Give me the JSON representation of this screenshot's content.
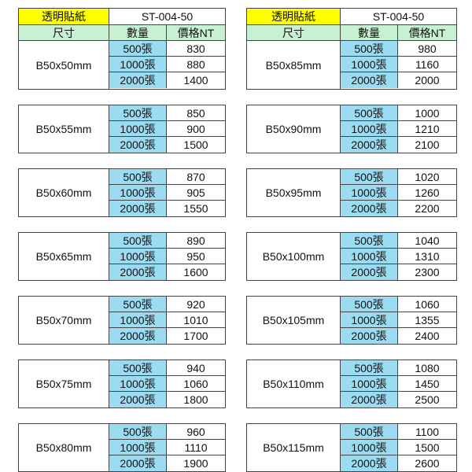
{
  "colors": {
    "title_bg": "#ffff00",
    "header_bg": "#c8f0d2",
    "qty_bg": "#9cdcf2"
  },
  "tables": [
    {
      "title": "透明貼紙",
      "code": "ST-004-50",
      "headers": [
        "尺寸",
        "數量",
        "價格NT"
      ],
      "blocks": [
        {
          "size": "B50x50mm",
          "rows": [
            [
              "500張",
              "830"
            ],
            [
              "1000張",
              "880"
            ],
            [
              "2000張",
              "1400"
            ]
          ]
        },
        {
          "size": "B50x55mm",
          "rows": [
            [
              "500張",
              "850"
            ],
            [
              "1000張",
              "900"
            ],
            [
              "2000張",
              "1500"
            ]
          ]
        },
        {
          "size": "B50x60mm",
          "rows": [
            [
              "500張",
              "870"
            ],
            [
              "1000張",
              "905"
            ],
            [
              "2000張",
              "1550"
            ]
          ]
        },
        {
          "size": "B50x65mm",
          "rows": [
            [
              "500張",
              "890"
            ],
            [
              "1000張",
              "950"
            ],
            [
              "2000張",
              "1600"
            ]
          ]
        },
        {
          "size": "B50x70mm",
          "rows": [
            [
              "500張",
              "920"
            ],
            [
              "1000張",
              "1010"
            ],
            [
              "2000張",
              "1700"
            ]
          ]
        },
        {
          "size": "B50x75mm",
          "rows": [
            [
              "500張",
              "940"
            ],
            [
              "1000張",
              "1060"
            ],
            [
              "2000張",
              "1800"
            ]
          ]
        },
        {
          "size": "B50x80mm",
          "rows": [
            [
              "500張",
              "960"
            ],
            [
              "1000張",
              "1110"
            ],
            [
              "2000張",
              "1900"
            ]
          ]
        }
      ]
    },
    {
      "title": "透明貼紙",
      "code": "ST-004-50",
      "headers": [
        "尺寸",
        "數量",
        "價格NT"
      ],
      "blocks": [
        {
          "size": "B50x85mm",
          "rows": [
            [
              "500張",
              "980"
            ],
            [
              "1000張",
              "1160"
            ],
            [
              "2000張",
              "2000"
            ]
          ]
        },
        {
          "size": "B50x90mm",
          "rows": [
            [
              "500張",
              "1000"
            ],
            [
              "1000張",
              "1210"
            ],
            [
              "2000張",
              "2100"
            ]
          ]
        },
        {
          "size": "B50x95mm",
          "rows": [
            [
              "500張",
              "1020"
            ],
            [
              "1000張",
              "1260"
            ],
            [
              "2000張",
              "2200"
            ]
          ]
        },
        {
          "size": "B50x100mm",
          "rows": [
            [
              "500張",
              "1040"
            ],
            [
              "1000張",
              "1310"
            ],
            [
              "2000張",
              "2300"
            ]
          ]
        },
        {
          "size": "B50x105mm",
          "rows": [
            [
              "500張",
              "1060"
            ],
            [
              "1000張",
              "1355"
            ],
            [
              "2000張",
              "2400"
            ]
          ]
        },
        {
          "size": "B50x110mm",
          "rows": [
            [
              "500張",
              "1080"
            ],
            [
              "1000張",
              "1450"
            ],
            [
              "2000張",
              "2500"
            ]
          ]
        },
        {
          "size": "B50x115mm",
          "rows": [
            [
              "500張",
              "1100"
            ],
            [
              "1000張",
              "1500"
            ],
            [
              "2000張",
              "2600"
            ]
          ]
        }
      ]
    }
  ]
}
